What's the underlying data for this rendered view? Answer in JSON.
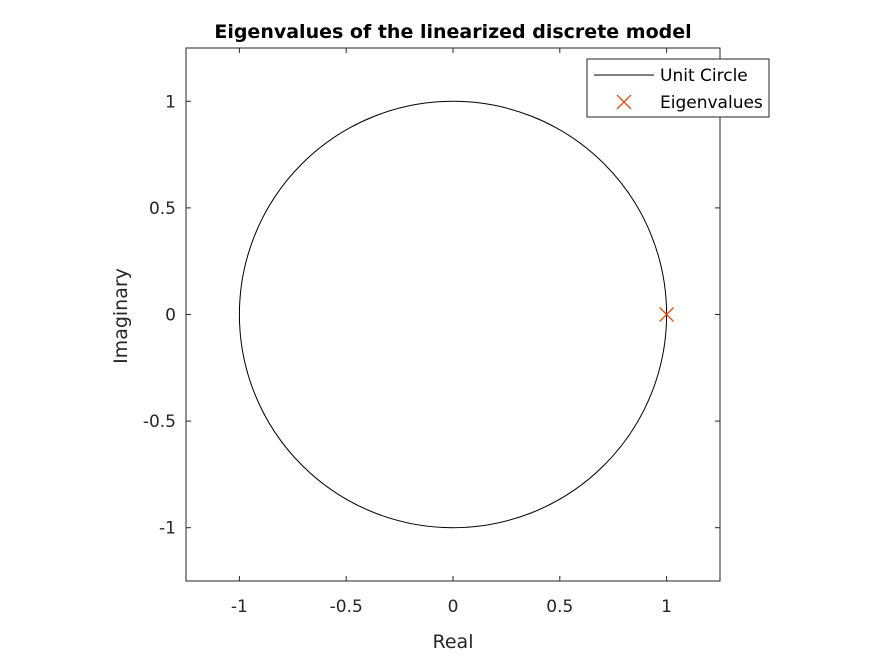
{
  "chart_data": {
    "type": "scatter",
    "title": "Eigenvalues of the linearized discrete model",
    "xlabel": "Real",
    "ylabel": "Imaginary",
    "xlim": [
      -1.25,
      1.25
    ],
    "ylim": [
      -1.25,
      1.25
    ],
    "xticks": [
      -1,
      -0.5,
      0,
      0.5,
      1
    ],
    "yticks": [
      -1,
      -0.5,
      0,
      0.5,
      1
    ],
    "xtick_labels": [
      "-1",
      "-0.5",
      "0",
      "0.5",
      "1"
    ],
    "ytick_labels": [
      "-1",
      "-0.5",
      "0",
      "0.5",
      "1"
    ],
    "grid": false,
    "legend_position": "top-right",
    "series": [
      {
        "name": "Unit Circle",
        "kind": "line",
        "color": "#000000",
        "center": [
          0,
          0
        ],
        "radius": 1
      },
      {
        "name": "Eigenvalues",
        "kind": "marker",
        "marker": "x",
        "color": "#d95319",
        "points": [
          [
            1,
            0
          ]
        ]
      }
    ]
  }
}
